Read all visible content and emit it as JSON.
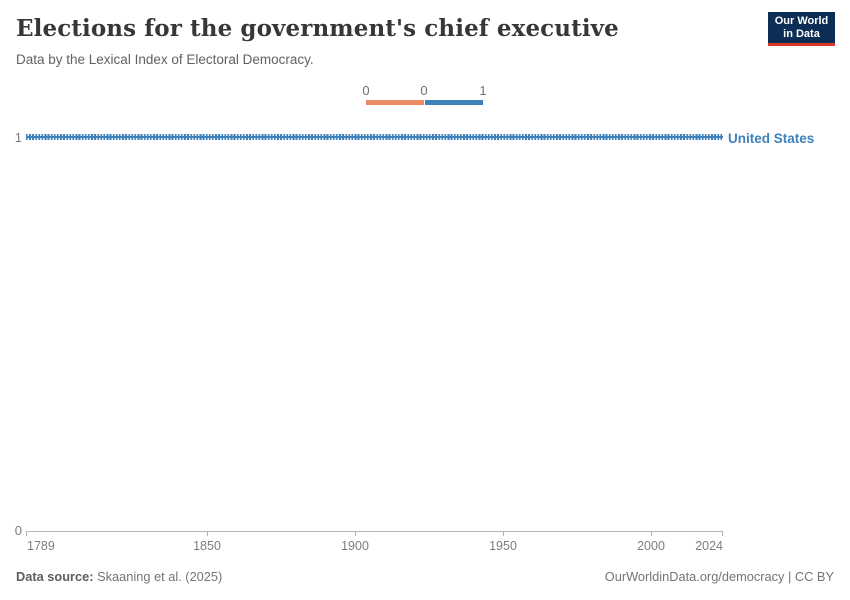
{
  "header": {
    "title": "Elections for the government's chief executive",
    "subtitle": "Data by the Lexical Index of Electoral Democracy.",
    "logo": {
      "line1": "Our World",
      "line2": "in Data"
    }
  },
  "legend": {
    "edge_labels": [
      "0",
      "0",
      "1"
    ],
    "segments": [
      {
        "value": "0",
        "color": "#ec8a65"
      },
      {
        "value": "1",
        "color": "#3f81ba"
      }
    ]
  },
  "chart": {
    "y_axis": {
      "top_label": "1",
      "bottom_label": "0"
    },
    "x_ticks": [
      "1789",
      "1850",
      "1900",
      "1950",
      "2000",
      "2024"
    ],
    "series_label": "United States",
    "line_color": "#3f81ba"
  },
  "chart_data": {
    "type": "line",
    "title": "Elections for the government's chief executive",
    "subtitle": "Data by the Lexical Index of Electoral Democracy.",
    "xlabel": "",
    "ylabel": "",
    "xlim": [
      1789,
      2024
    ],
    "ylim": [
      0,
      1
    ],
    "x_tick_labels": [
      1789,
      1850,
      1900,
      1950,
      2000,
      2024
    ],
    "y_tick_labels": [
      0,
      1
    ],
    "grid": false,
    "legend": {
      "position": "top-center",
      "entries": [
        {
          "label": "0",
          "color": "#ec8a65"
        },
        {
          "label": "1",
          "color": "#3f81ba"
        }
      ]
    },
    "series": [
      {
        "name": "United States",
        "color": "#3f81ba",
        "x_start": 1789,
        "x_end": 2024,
        "constant_value": 1,
        "points_summary": "Value equals 1 for every year from 1789 through 2024 (flat line at y = 1)"
      }
    ]
  },
  "footer": {
    "source_label": "Data source:",
    "source_value": " Skaaning et al. (2025)",
    "right_text": "OurWorldinData.org/democracy | CC BY"
  }
}
